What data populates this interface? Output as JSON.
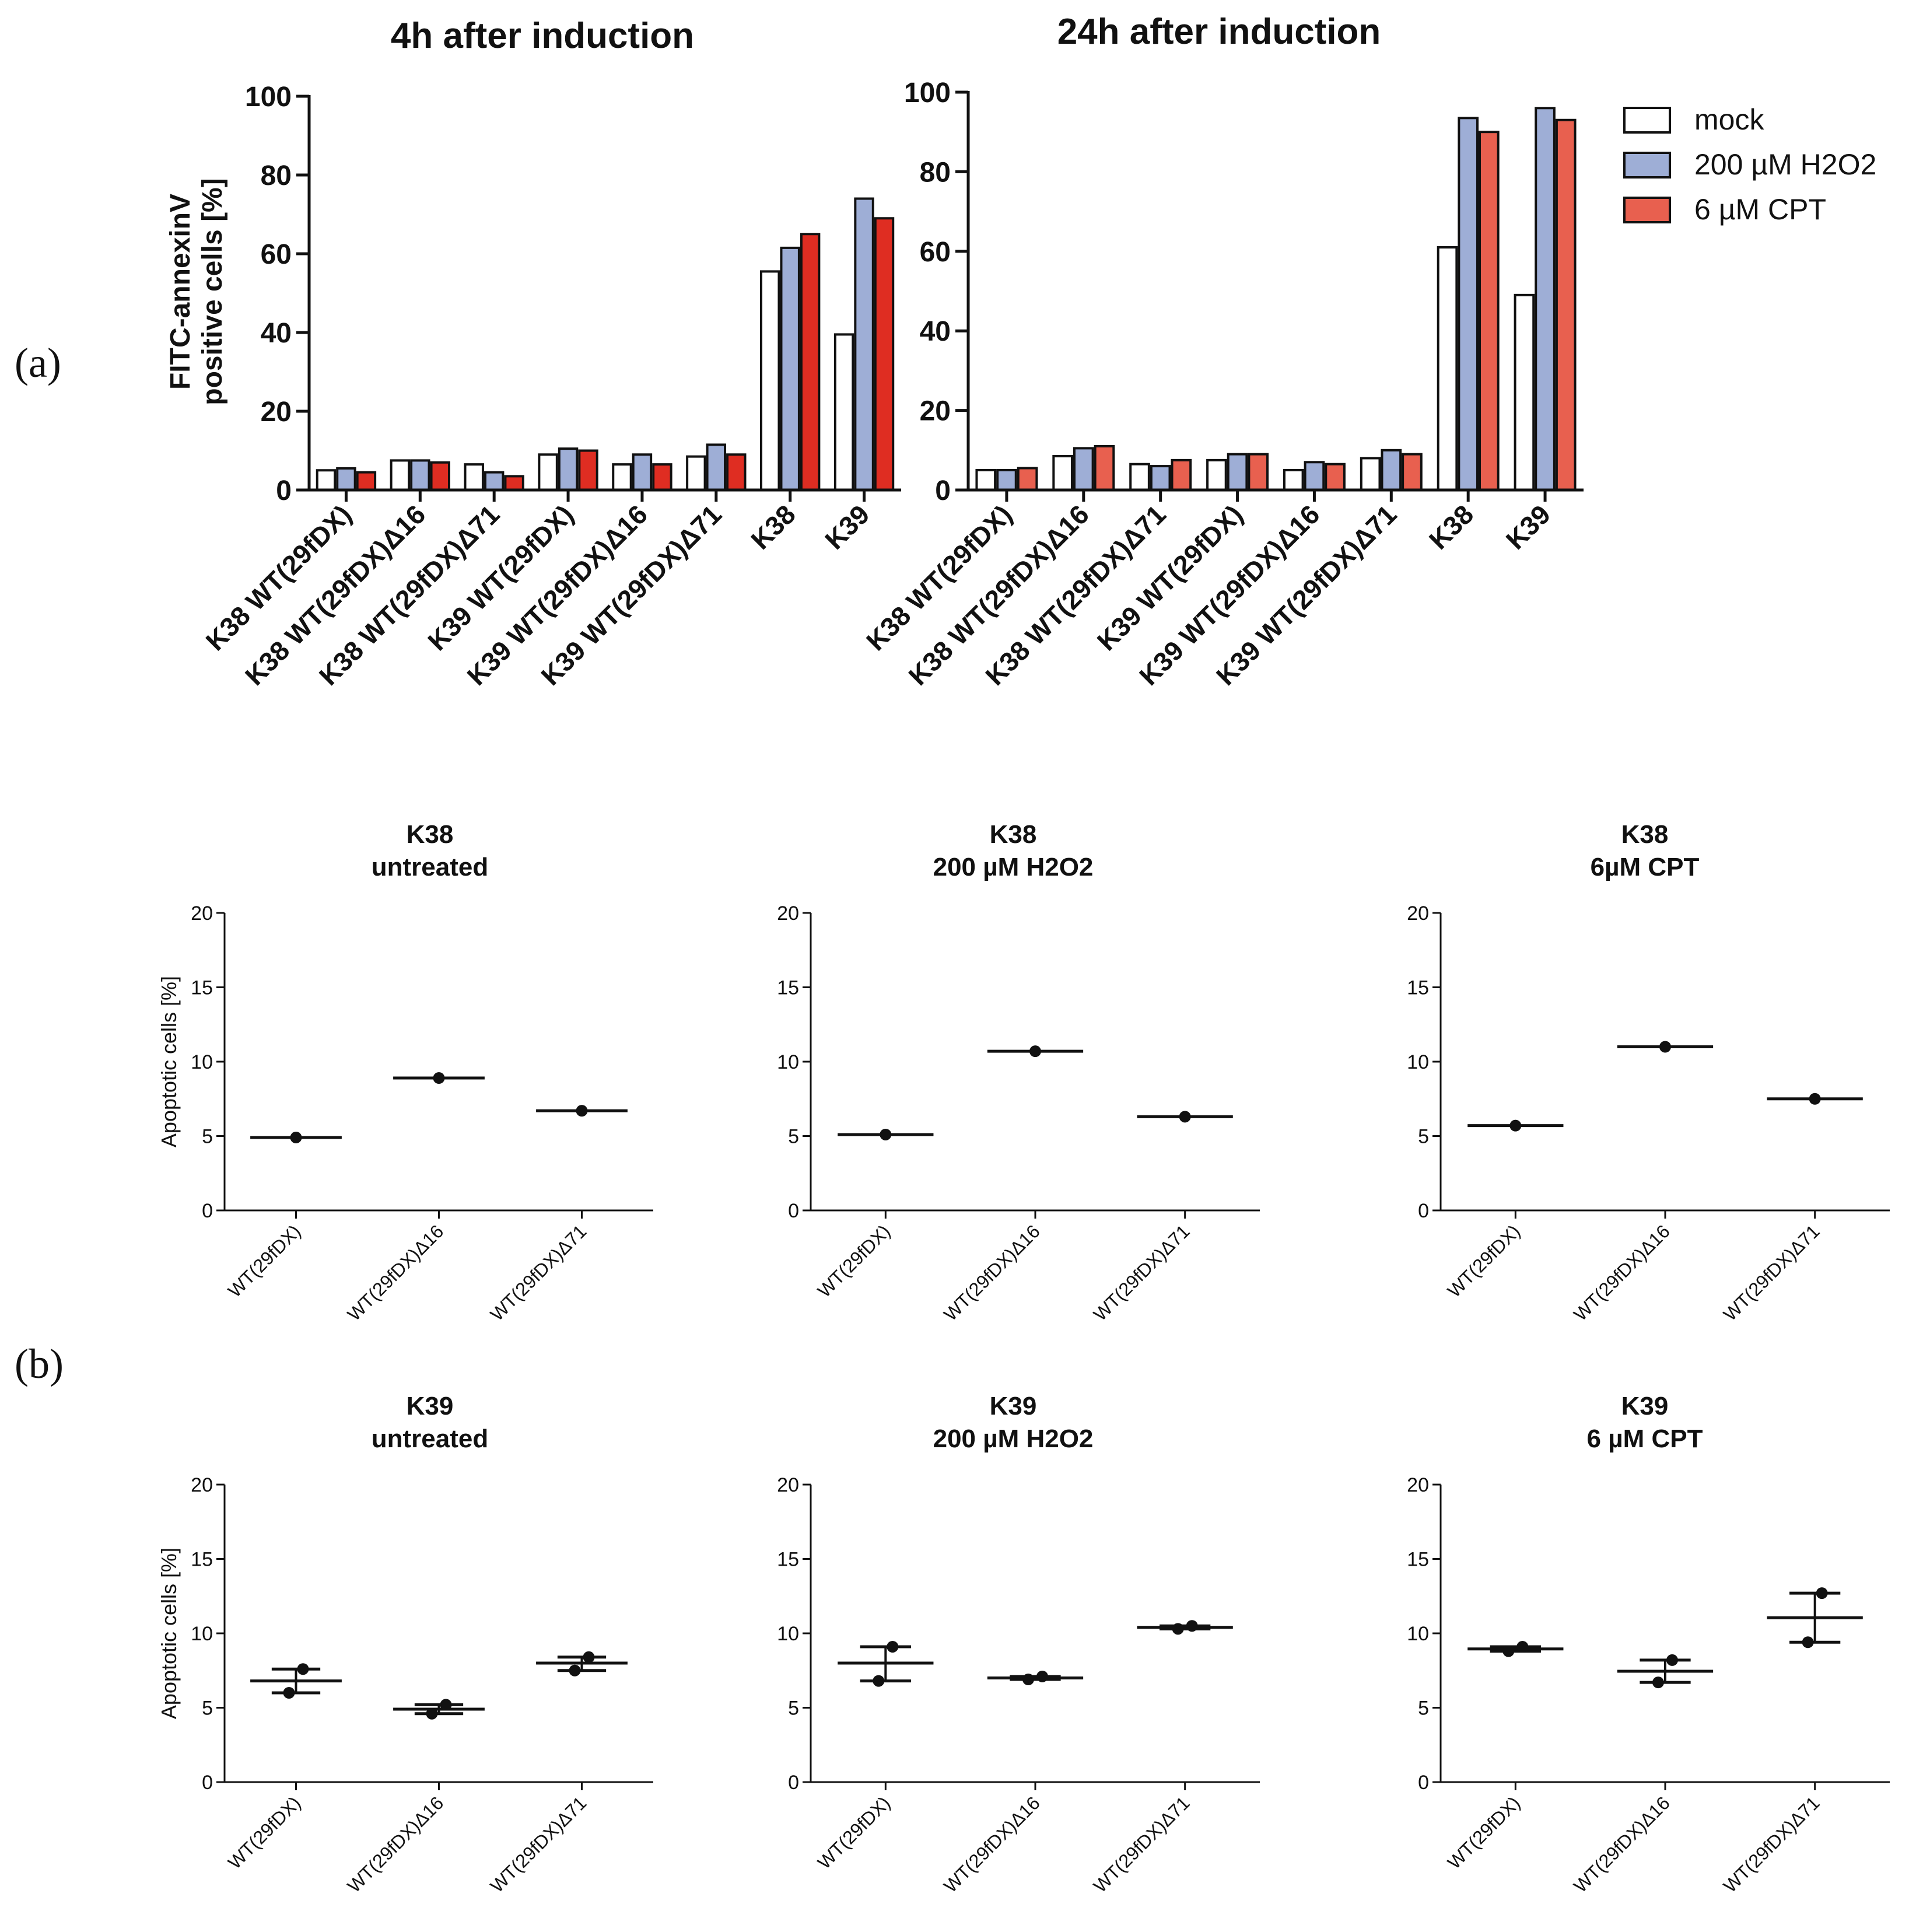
{
  "figure": {
    "panel_a_label": "(a)",
    "panel_b_label": "(b)"
  },
  "legend": {
    "items": [
      {
        "label": "mock",
        "color": "#ffffff"
      },
      {
        "label": "200 µM H2O2",
        "color": "#9eaed6"
      },
      {
        "label": "6 µM CPT",
        "color": "#e2594a"
      }
    ]
  },
  "colors": {
    "mock": "#ffffff",
    "h2o2": "#9eaed6",
    "cpt_4h": "#df2d22",
    "cpt_24h": "#e8604f",
    "axis": "#111111"
  },
  "chart_data": [
    {
      "id": "a_4h",
      "type": "bar",
      "title": "4h after induction",
      "ylabel_line1": "FITC-annexinV",
      "ylabel_line2": "positive cells [%]",
      "xlabel": "",
      "ylim": [
        0,
        100
      ],
      "yticks": [
        0,
        20,
        40,
        60,
        80,
        100
      ],
      "categories": [
        "K38 WT(29fDX)",
        "K38 WT(29fDX)Δ16",
        "K38 WT(29fDX)Δ71",
        "K39 WT(29fDX)",
        "K39 WT(29fDX)Δ16",
        "K39 WT(29fDX)Δ71",
        "K38",
        "K39"
      ],
      "series": [
        {
          "name": "mock",
          "values": [
            5,
            7.5,
            6.5,
            9,
            6.5,
            8.5,
            55.5,
            39.5
          ]
        },
        {
          "name": "200 µM H2O2",
          "values": [
            5.5,
            7.5,
            4.5,
            10.5,
            9,
            11.5,
            61.5,
            74
          ]
        },
        {
          "name": "6 µM CPT",
          "values": [
            4.5,
            7,
            3.5,
            10,
            6.5,
            9,
            65,
            69
          ]
        }
      ]
    },
    {
      "id": "a_24h",
      "type": "bar",
      "title": "24h after induction",
      "xlabel": "",
      "ylabel": "",
      "ylim": [
        0,
        100
      ],
      "yticks": [
        0,
        20,
        40,
        60,
        80,
        100
      ],
      "categories": [
        "K38 WT(29fDX)",
        "K38 WT(29fDX)Δ16",
        "K38 WT(29fDX)Δ71",
        "K39 WT(29fDX)",
        "K39 WT(29fDX)Δ16",
        "K39 WT(29fDX)Δ71",
        "K38",
        "K39"
      ],
      "series": [
        {
          "name": "mock",
          "values": [
            5,
            8.5,
            6.5,
            7.5,
            5,
            8,
            61,
            49
          ]
        },
        {
          "name": "200 µM H2O2",
          "values": [
            5,
            10.5,
            6,
            9,
            7,
            10,
            93.5,
            96
          ]
        },
        {
          "name": "6 µM CPT",
          "values": [
            5.5,
            11,
            7.5,
            9,
            6.5,
            9,
            90,
            93
          ]
        }
      ]
    },
    {
      "id": "b_k38_untreated",
      "type": "scatter",
      "title_line1": "K38",
      "title_line2": "untreated",
      "ylabel": "Apoptotic cells [%]",
      "xlabel": "",
      "ylim": [
        0,
        20
      ],
      "yticks": [
        0,
        5,
        10,
        15,
        20
      ],
      "categories": [
        "WT(29fDX)",
        "WT(29fDX)Δ16",
        "WT(29fDX)Δ71"
      ],
      "points": [
        [
          4.9
        ],
        [
          8.9
        ],
        [
          6.7
        ]
      ],
      "mean": [
        4.9,
        8.9,
        6.7
      ]
    },
    {
      "id": "b_k38_h2o2",
      "type": "scatter",
      "title_line1": "K38",
      "title_line2": "200 µM H2O2",
      "ylabel": "",
      "xlabel": "",
      "ylim": [
        0,
        20
      ],
      "yticks": [
        0,
        5,
        10,
        15,
        20
      ],
      "categories": [
        "WT(29fDX)",
        "WT(29fDX)Δ16",
        "WT(29fDX)Δ71"
      ],
      "points": [
        [
          5.1
        ],
        [
          10.7
        ],
        [
          6.3
        ]
      ],
      "mean": [
        5.1,
        10.7,
        6.3
      ]
    },
    {
      "id": "b_k38_cpt",
      "type": "scatter",
      "title_line1": "K38",
      "title_line2": "6µM CPT",
      "ylabel": "",
      "xlabel": "",
      "ylim": [
        0,
        20
      ],
      "yticks": [
        0,
        5,
        10,
        15,
        20
      ],
      "categories": [
        "WT(29fDX)",
        "WT(29fDX)Δ16",
        "WT(29fDX)Δ71"
      ],
      "points": [
        [
          5.7
        ],
        [
          11.0
        ],
        [
          7.5
        ]
      ],
      "mean": [
        5.7,
        11.0,
        7.5
      ]
    },
    {
      "id": "b_k39_untreated",
      "type": "scatter",
      "title_line1": "K39",
      "title_line2": "untreated",
      "ylabel": "Apoptotic cells [%]",
      "xlabel": "",
      "ylim": [
        0,
        20
      ],
      "yticks": [
        0,
        5,
        10,
        15,
        20
      ],
      "categories": [
        "WT(29fDX)",
        "WT(29fDX)Δ16",
        "WT(29fDX)Δ71"
      ],
      "points": [
        [
          6.0,
          7.6
        ],
        [
          4.6,
          5.2
        ],
        [
          7.5,
          8.4
        ]
      ],
      "mean": [
        6.8,
        4.9,
        8.0
      ]
    },
    {
      "id": "b_k39_h2o2",
      "type": "scatter",
      "title_line1": "K39",
      "title_line2": "200 µM H2O2",
      "ylabel": "",
      "xlabel": "",
      "ylim": [
        0,
        20
      ],
      "yticks": [
        0,
        5,
        10,
        15,
        20
      ],
      "categories": [
        "WT(29fDX)",
        "WT(29fDX)Δ16",
        "WT(29fDX)Δ71"
      ],
      "points": [
        [
          6.8,
          9.1
        ],
        [
          6.9,
          7.1
        ],
        [
          10.3,
          10.5
        ]
      ],
      "mean": [
        8.0,
        7.0,
        10.4
      ]
    },
    {
      "id": "b_k39_cpt",
      "type": "scatter",
      "title_line1": "K39",
      "title_line2": "6 µM CPT",
      "ylabel": "",
      "xlabel": "",
      "ylim": [
        0,
        20
      ],
      "yticks": [
        0,
        5,
        10,
        15,
        20
      ],
      "categories": [
        "WT(29fDX)",
        "WT(29fDX)Δ16",
        "WT(29fDX)Δ71"
      ],
      "points": [
        [
          8.8,
          9.1
        ],
        [
          6.7,
          8.2
        ],
        [
          9.4,
          12.7
        ]
      ],
      "mean": [
        8.95,
        7.45,
        11.05
      ]
    }
  ]
}
